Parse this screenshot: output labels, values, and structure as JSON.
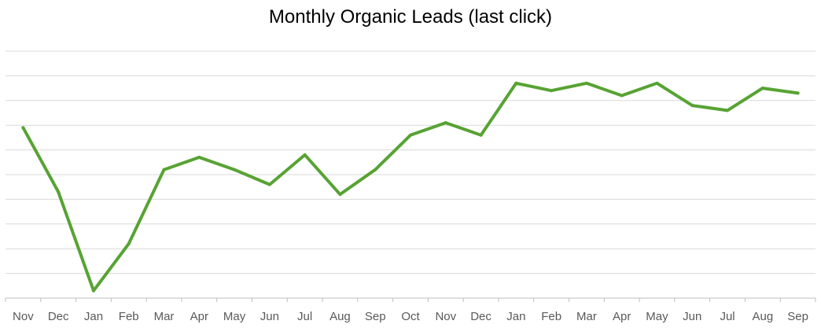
{
  "chart_data": {
    "type": "line",
    "title": "Monthly Organic Leads (last click)",
    "xlabel": "",
    "ylabel": "",
    "categories": [
      "Nov",
      "Dec",
      "Jan",
      "Feb",
      "Mar",
      "Apr",
      "May",
      "Jun",
      "Jul",
      "Aug",
      "Sep",
      "Oct",
      "Nov",
      "Dec",
      "Jan",
      "Feb",
      "Mar",
      "Apr",
      "May",
      "Jun",
      "Jul",
      "Aug",
      "Sep"
    ],
    "series": [
      {
        "values": [
          6.9,
          4.3,
          0.3,
          2.2,
          5.2,
          5.7,
          5.2,
          4.6,
          5.8,
          4.2,
          5.2,
          6.6,
          7.1,
          6.6,
          8.7,
          8.4,
          8.7,
          8.2,
          8.7,
          7.8,
          7.6,
          8.5,
          8.3
        ]
      }
    ],
    "ylim": [
      0,
      10
    ],
    "ytick_count": 10,
    "y_tick_labels_shown": false,
    "grid": true,
    "legend": "none",
    "line_color": "#57a333"
  }
}
